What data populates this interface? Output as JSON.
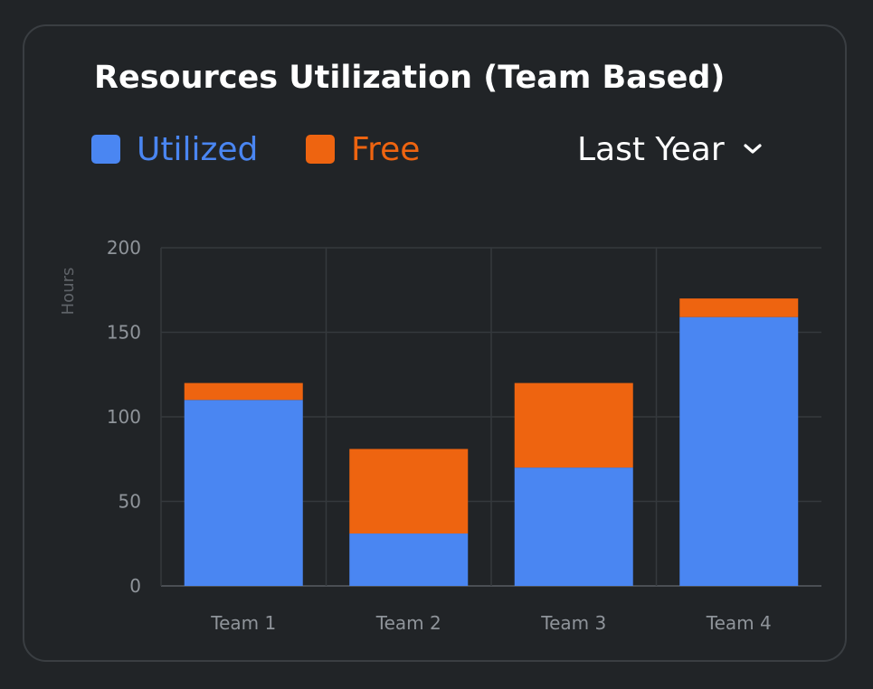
{
  "title": "Resources Utilization (Team Based)",
  "legend": [
    {
      "label": "Utilized",
      "color": "#4a86f2"
    },
    {
      "label": "Free",
      "color": "#ee6410"
    }
  ],
  "period": {
    "selected": "Last Year",
    "icon": "chevron-down-icon"
  },
  "chart_data": {
    "type": "bar",
    "stacked": true,
    "categories": [
      "Team 1",
      "Team 2",
      "Team 3",
      "Team 4"
    ],
    "series": [
      {
        "name": "Utilized",
        "color": "#4a86f2",
        "values": [
          110,
          31,
          70,
          159
        ]
      },
      {
        "name": "Free",
        "color": "#ee6410",
        "values": [
          10,
          50,
          50,
          11
        ]
      }
    ],
    "ylabel": "Hours",
    "xlabel": "",
    "ylim": [
      0,
      200
    ],
    "yticks": [
      0,
      50,
      100,
      150,
      200
    ],
    "grid": true,
    "legend_position": "top-left"
  }
}
